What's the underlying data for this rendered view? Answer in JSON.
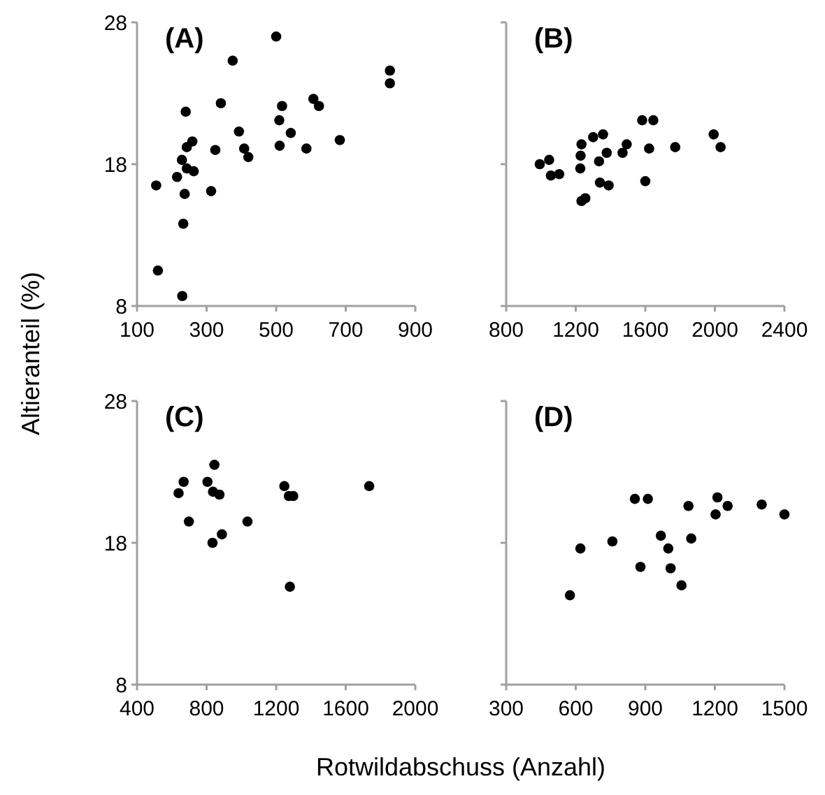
{
  "chart_data": [
    {
      "type": "scatter",
      "title": "(A)",
      "ylabel": "Altieranteil (%)",
      "xlim": [
        100,
        900
      ],
      "xticks": [
        100,
        300,
        500,
        700,
        900
      ],
      "ylim": [
        8,
        28
      ],
      "yticks": [
        8,
        18,
        28
      ],
      "marker": "circle",
      "grid": false,
      "series": [
        {
          "color": "#000000",
          "x": [
            155,
            160,
            230,
            233,
            237,
            240,
            215,
            229,
            243,
            263,
            243,
            259,
            313,
            325,
            341,
            375,
            393,
            408,
            420,
            500,
            509,
            510,
            517,
            542,
            587,
            607,
            623,
            683,
            827,
            827
          ],
          "values": [
            16.5,
            10.5,
            8.7,
            13.8,
            15.9,
            21.7,
            17.1,
            18.3,
            17.7,
            17.5,
            19.2,
            19.6,
            16.1,
            19.0,
            22.3,
            25.3,
            20.3,
            19.1,
            18.5,
            27.0,
            21.1,
            19.3,
            22.1,
            20.2,
            19.1,
            22.6,
            22.1,
            19.7,
            24.6,
            23.7
          ]
        }
      ]
    },
    {
      "type": "scatter",
      "title": "(B)",
      "xlim": [
        800,
        2400
      ],
      "xticks": [
        800,
        1200,
        1600,
        2000,
        2400
      ],
      "ylim": [
        8,
        28
      ],
      "yticks": [
        8,
        18,
        28
      ],
      "tick_labels": "x",
      "marker": "circle",
      "grid": false,
      "series": [
        {
          "color": "#000000",
          "x": [
            993,
            1047,
            1057,
            1105,
            1226,
            1228,
            1233,
            1233,
            1255,
            1300,
            1334,
            1339,
            1357,
            1378,
            1389,
            1469,
            1493,
            1582,
            1600,
            1622,
            1646,
            1772,
            1993,
            2033
          ],
          "values": [
            18.0,
            18.3,
            17.2,
            17.3,
            17.7,
            18.6,
            19.4,
            15.4,
            15.6,
            19.9,
            18.2,
            16.7,
            20.1,
            18.8,
            16.5,
            18.8,
            19.4,
            21.1,
            16.8,
            19.1,
            21.1,
            19.2,
            20.1,
            19.2
          ]
        }
      ]
    },
    {
      "type": "scatter",
      "title": "(C)",
      "xlabel": "Rotwildabschuss (Anzahl)",
      "xlim": [
        400,
        2000
      ],
      "xticks": [
        400,
        800,
        1200,
        1600,
        2000
      ],
      "ylim": [
        8,
        28
      ],
      "yticks": [
        8,
        18,
        28
      ],
      "marker": "circle",
      "grid": false,
      "series": [
        {
          "color": "#000000",
          "x": [
            639,
            668,
            698,
            805,
            845,
            834,
            837,
            874,
            888,
            1035,
            1247,
            1273,
            1298,
            1279,
            1735
          ],
          "values": [
            21.5,
            22.3,
            19.5,
            22.3,
            23.5,
            18.0,
            21.6,
            21.4,
            18.6,
            19.5,
            22.0,
            21.3,
            21.3,
            14.9,
            22.0
          ]
        }
      ]
    },
    {
      "type": "scatter",
      "title": "(D)",
      "xlim": [
        300,
        1500
      ],
      "xticks": [
        300,
        600,
        900,
        1200,
        1500
      ],
      "ylim": [
        8,
        28
      ],
      "yticks": [
        8,
        18,
        28
      ],
      "tick_labels": "x",
      "marker": "circle",
      "grid": false,
      "series": [
        {
          "color": "#000000",
          "x": [
            575,
            620,
            758,
            855,
            879,
            911,
            967,
            999,
            1009,
            1056,
            1086,
            1098,
            1203,
            1211,
            1255,
            1402,
            1500
          ],
          "values": [
            14.3,
            17.6,
            18.1,
            21.1,
            16.3,
            21.1,
            18.5,
            17.6,
            16.2,
            15.0,
            20.6,
            18.3,
            20.0,
            21.2,
            20.6,
            20.7,
            20.0
          ]
        }
      ]
    }
  ]
}
